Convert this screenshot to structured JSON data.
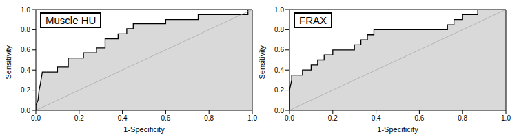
{
  "chart_data": [
    {
      "type": "area",
      "title": "Muscle HU",
      "x_label": "1-Specificity",
      "y_label": "Sensitivity",
      "color": "#d9d9d9",
      "x": [
        0,
        0,
        0.01,
        0.015,
        0.02,
        0.03,
        0.1,
        0.1,
        0.15,
        0.15,
        0.22,
        0.22,
        0.28,
        0.28,
        0.32,
        0.32,
        0.38,
        0.38,
        0.42,
        0.42,
        0.45,
        0.45,
        0.6,
        0.6,
        0.75,
        0.75,
        0.98,
        0.98,
        1
      ],
      "values": [
        0,
        0.05,
        0.1,
        0.2,
        0.25,
        0.38,
        0.38,
        0.43,
        0.43,
        0.52,
        0.52,
        0.57,
        0.57,
        0.62,
        0.62,
        0.71,
        0.71,
        0.76,
        0.76,
        0.81,
        0.81,
        0.86,
        0.86,
        0.9,
        0.9,
        0.95,
        0.95,
        1,
        1
      ],
      "xlim": [
        0,
        1
      ],
      "ylim": [
        0,
        1
      ],
      "xticks": [
        {
          "value": 0,
          "label": "0.0"
        },
        {
          "value": 0.2,
          "label": "0.2"
        },
        {
          "value": 0.4,
          "label": "0.4"
        },
        {
          "value": 0.6,
          "label": "0.6"
        },
        {
          "value": 0.8,
          "label": "0.8"
        },
        {
          "value": 1,
          "label": "1.0"
        }
      ],
      "yticks": [
        {
          "value": 0,
          "label": "0.0"
        },
        {
          "value": 0.2,
          "label": "0.2"
        },
        {
          "value": 0.4,
          "label": "0.4"
        },
        {
          "value": 0.6,
          "label": "0.6"
        },
        {
          "value": 0.8,
          "label": "0.8"
        },
        {
          "value": 1,
          "label": "1.0"
        }
      ],
      "grid": false
    },
    {
      "type": "area",
      "title": "FRAX",
      "x_label": "1-Specificity",
      "y_label": "Sensitivity",
      "color": "#d9d9d9",
      "x": [
        0,
        0,
        0.01,
        0.01,
        0.06,
        0.06,
        0.1,
        0.1,
        0.13,
        0.13,
        0.16,
        0.16,
        0.2,
        0.2,
        0.3,
        0.3,
        0.33,
        0.33,
        0.36,
        0.36,
        0.39,
        0.39,
        0.73,
        0.73,
        0.76,
        0.76,
        0.8,
        0.8,
        0.87,
        0.87,
        1
      ],
      "values": [
        0,
        0.2,
        0.3,
        0.35,
        0.35,
        0.4,
        0.4,
        0.45,
        0.45,
        0.5,
        0.5,
        0.55,
        0.55,
        0.6,
        0.6,
        0.65,
        0.65,
        0.7,
        0.7,
        0.75,
        0.75,
        0.8,
        0.8,
        0.85,
        0.85,
        0.9,
        0.9,
        0.95,
        0.95,
        1,
        1
      ],
      "xlim": [
        0,
        1
      ],
      "ylim": [
        0,
        1
      ],
      "xticks": [
        {
          "value": 0,
          "label": "0.0"
        },
        {
          "value": 0.2,
          "label": "0.2"
        },
        {
          "value": 0.4,
          "label": "0.4"
        },
        {
          "value": 0.6,
          "label": "0.6"
        },
        {
          "value": 0.8,
          "label": "0.8"
        },
        {
          "value": 1,
          "label": "1.0"
        }
      ],
      "yticks": [
        {
          "value": 0,
          "label": "0.0"
        },
        {
          "value": 0.2,
          "label": "0.2"
        },
        {
          "value": 0.4,
          "label": "0.4"
        },
        {
          "value": 0.6,
          "label": "0.6"
        },
        {
          "value": 0.8,
          "label": "0.8"
        },
        {
          "value": 1,
          "label": "1.0"
        }
      ],
      "grid": false
    }
  ]
}
